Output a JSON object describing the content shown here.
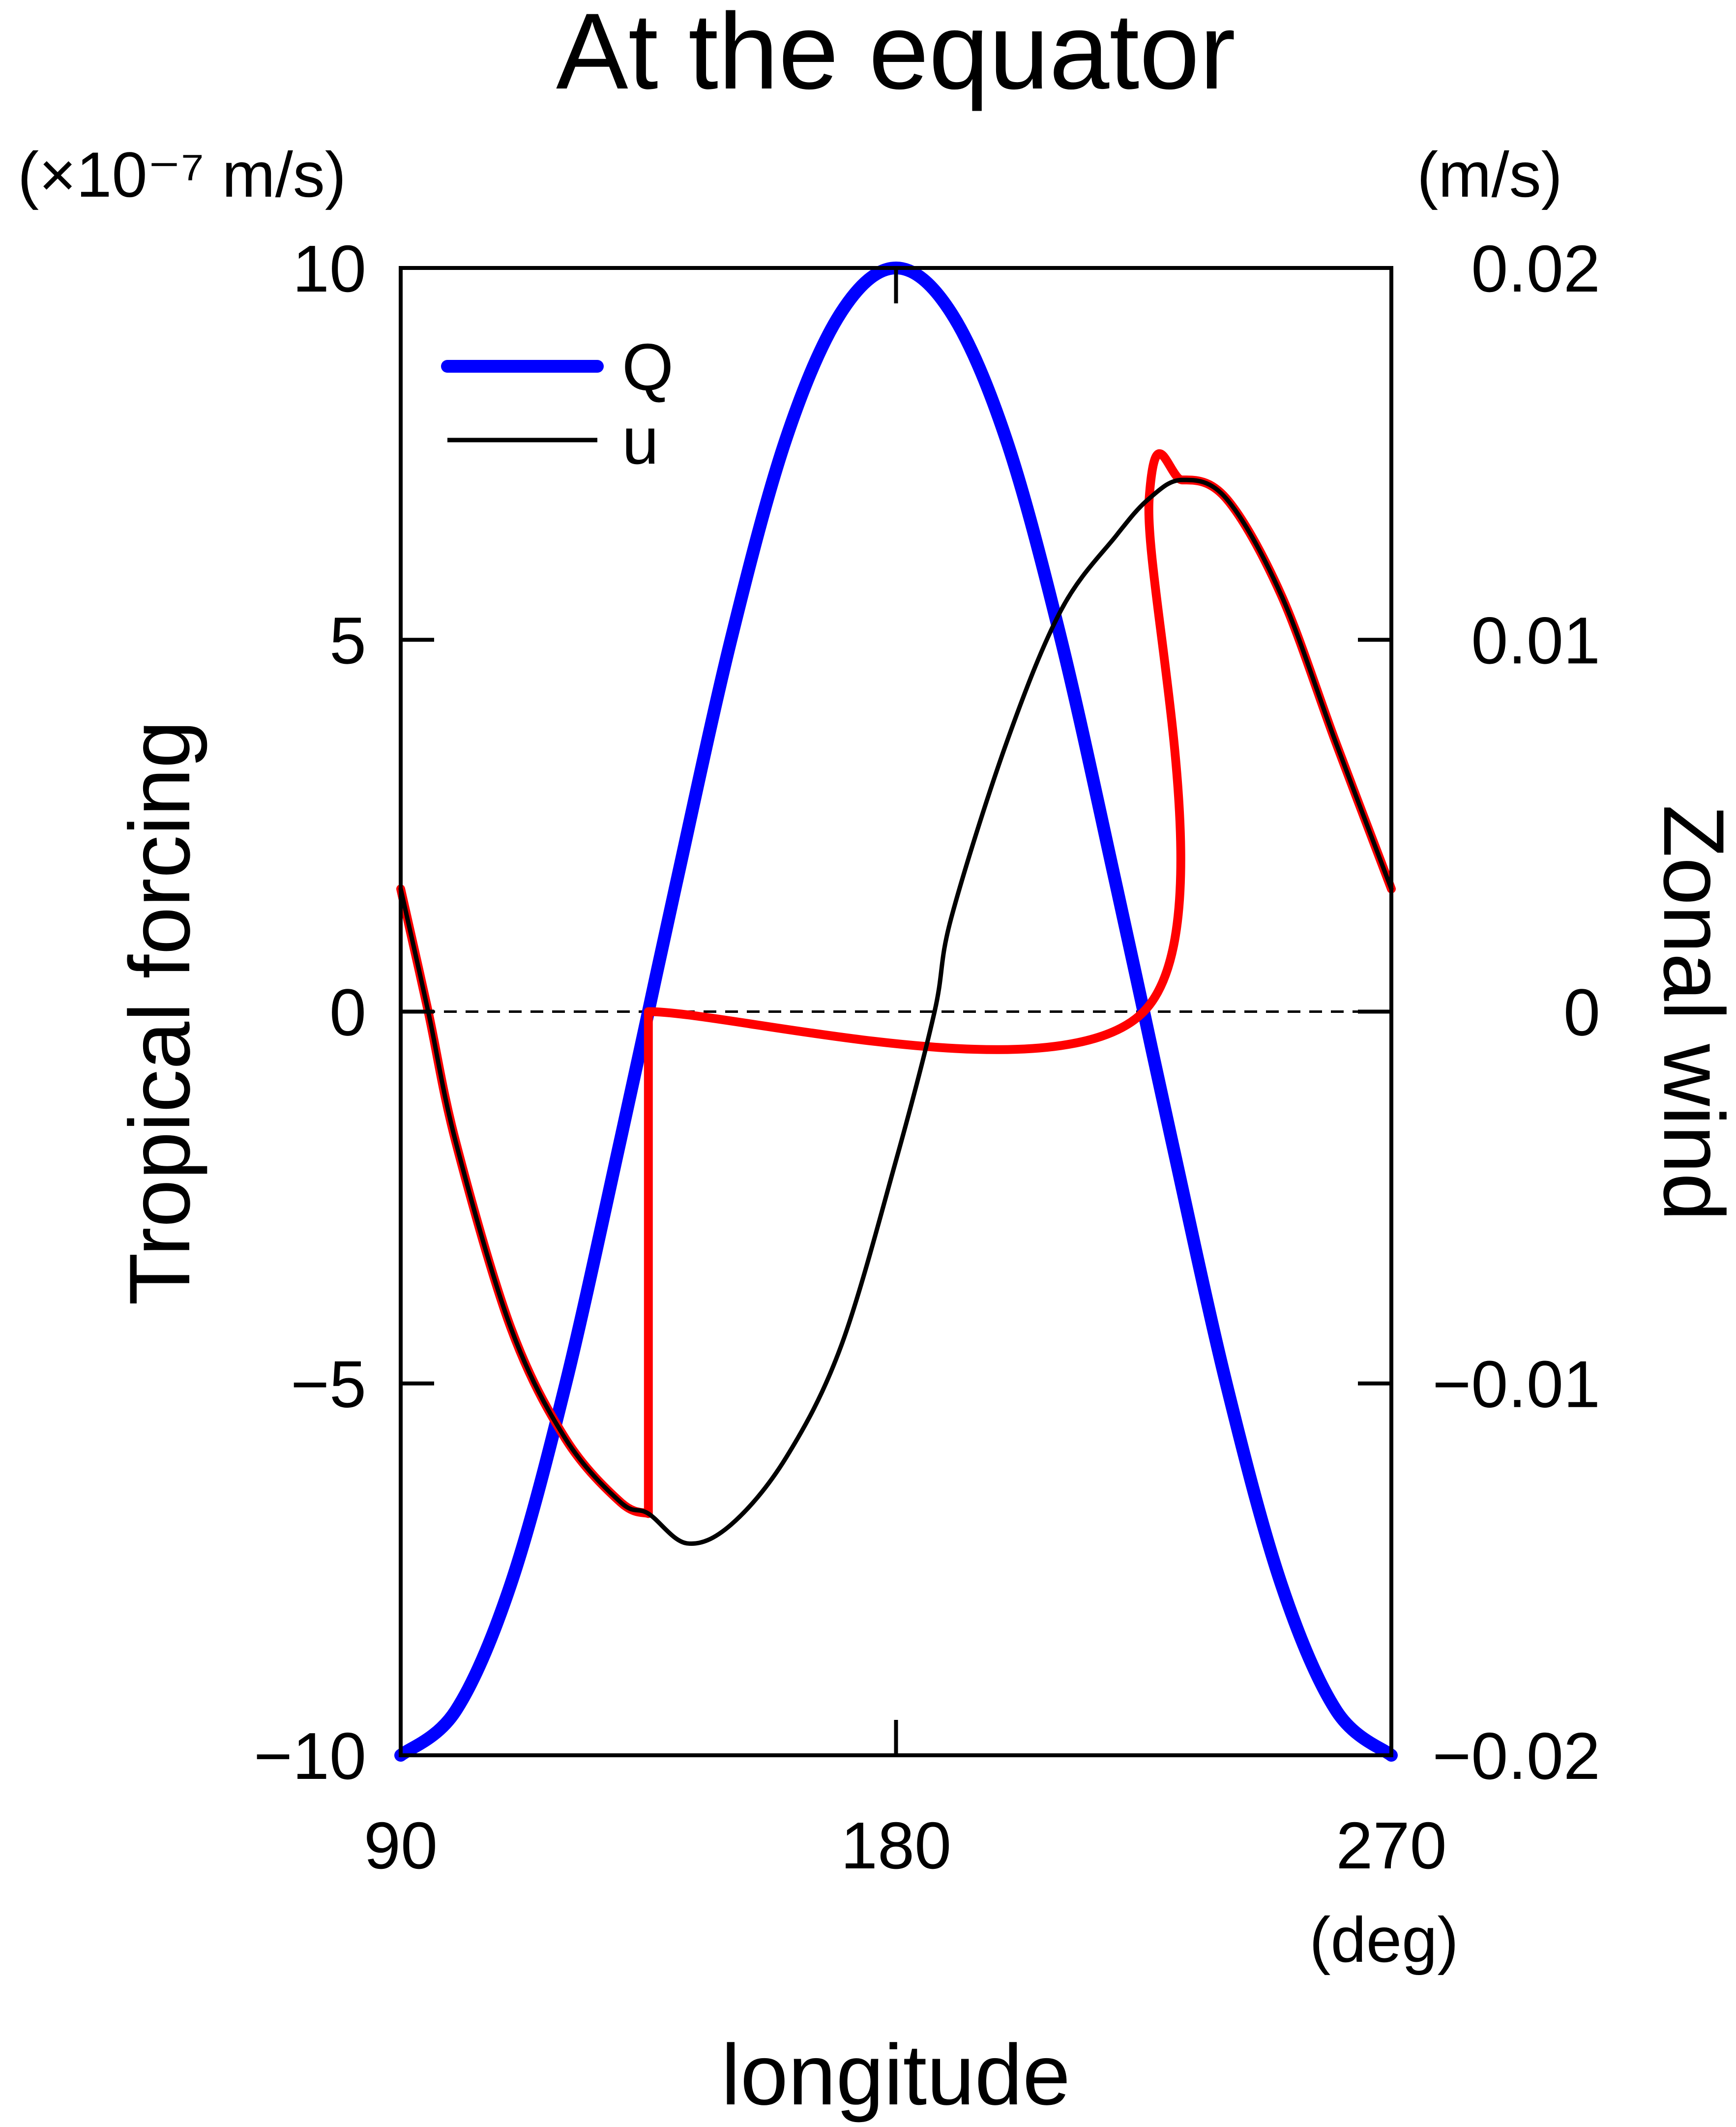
{
  "chart_data": {
    "type": "line",
    "title": "At the equator",
    "xlabel": "longitude",
    "x_unit": "(deg)",
    "ylabel_left": "Tropical forcing",
    "ylabel_left_unit": "(×10⁻⁷ m/s)",
    "ylabel_right": "Zonal wind",
    "ylabel_right_unit": "(m/s)",
    "xlim": [
      90,
      270
    ],
    "ylim_left": [
      -10,
      10
    ],
    "ylim_right": [
      -0.02,
      0.02
    ],
    "x_ticks": [
      "90",
      "180",
      "270"
    ],
    "y_ticks_left": [
      "10",
      "5",
      "0",
      "−5",
      "−10"
    ],
    "y_ticks_right": [
      "0.02",
      "0.01",
      "0",
      "−0.01",
      "−0.02"
    ],
    "legend_placement": "top-left",
    "grid": false,
    "zero_line": "dashed",
    "colors": {
      "Q": "#0000ff",
      "u": "#000000",
      "highlight": "#ff0000"
    },
    "series": [
      {
        "name": "Q",
        "axis": "left",
        "color": "#0000ff",
        "x": [
          90,
          100,
          110,
          120,
          130,
          135,
          140,
          150,
          160,
          170,
          180,
          190,
          200,
          210,
          220,
          225,
          230,
          240,
          250,
          260,
          270
        ],
        "y": [
          -10,
          -9.4,
          -7.7,
          -5.0,
          -1.7,
          0,
          1.7,
          5.0,
          7.7,
          9.4,
          10,
          9.4,
          7.7,
          5.0,
          1.7,
          0,
          -1.7,
          -5.0,
          -7.7,
          -9.4,
          -10
        ]
      },
      {
        "name": "u",
        "axis": "right",
        "color": "#000000",
        "x": [
          90,
          95,
          100,
          110,
          120,
          130,
          135,
          142,
          150,
          160,
          170,
          180,
          187,
          190,
          200,
          210,
          220,
          226,
          232,
          240,
          250,
          260,
          270
        ],
        "y": [
          0.0033,
          0,
          -0.0035,
          -0.0085,
          -0.0115,
          -0.0132,
          -0.0135,
          -0.0143,
          -0.0138,
          -0.012,
          -0.009,
          -0.004,
          0,
          0.0025,
          0.0072,
          0.0108,
          0.0128,
          0.0138,
          0.0143,
          0.0138,
          0.0112,
          0.0072,
          0.0033
        ]
      },
      {
        "name": "",
        "axis": "right",
        "color": "#ff0000",
        "x": [
          90,
          95,
          100,
          110,
          120,
          130,
          135,
          135,
          225,
          226,
          232,
          240,
          250,
          260,
          270
        ],
        "y": [
          0.0033,
          0,
          -0.0035,
          -0.0085,
          -0.0115,
          -0.0132,
          -0.0135,
          0,
          0,
          0.0138,
          0.0143,
          0.0138,
          0.0112,
          0.0072,
          0.0033
        ]
      }
    ]
  }
}
